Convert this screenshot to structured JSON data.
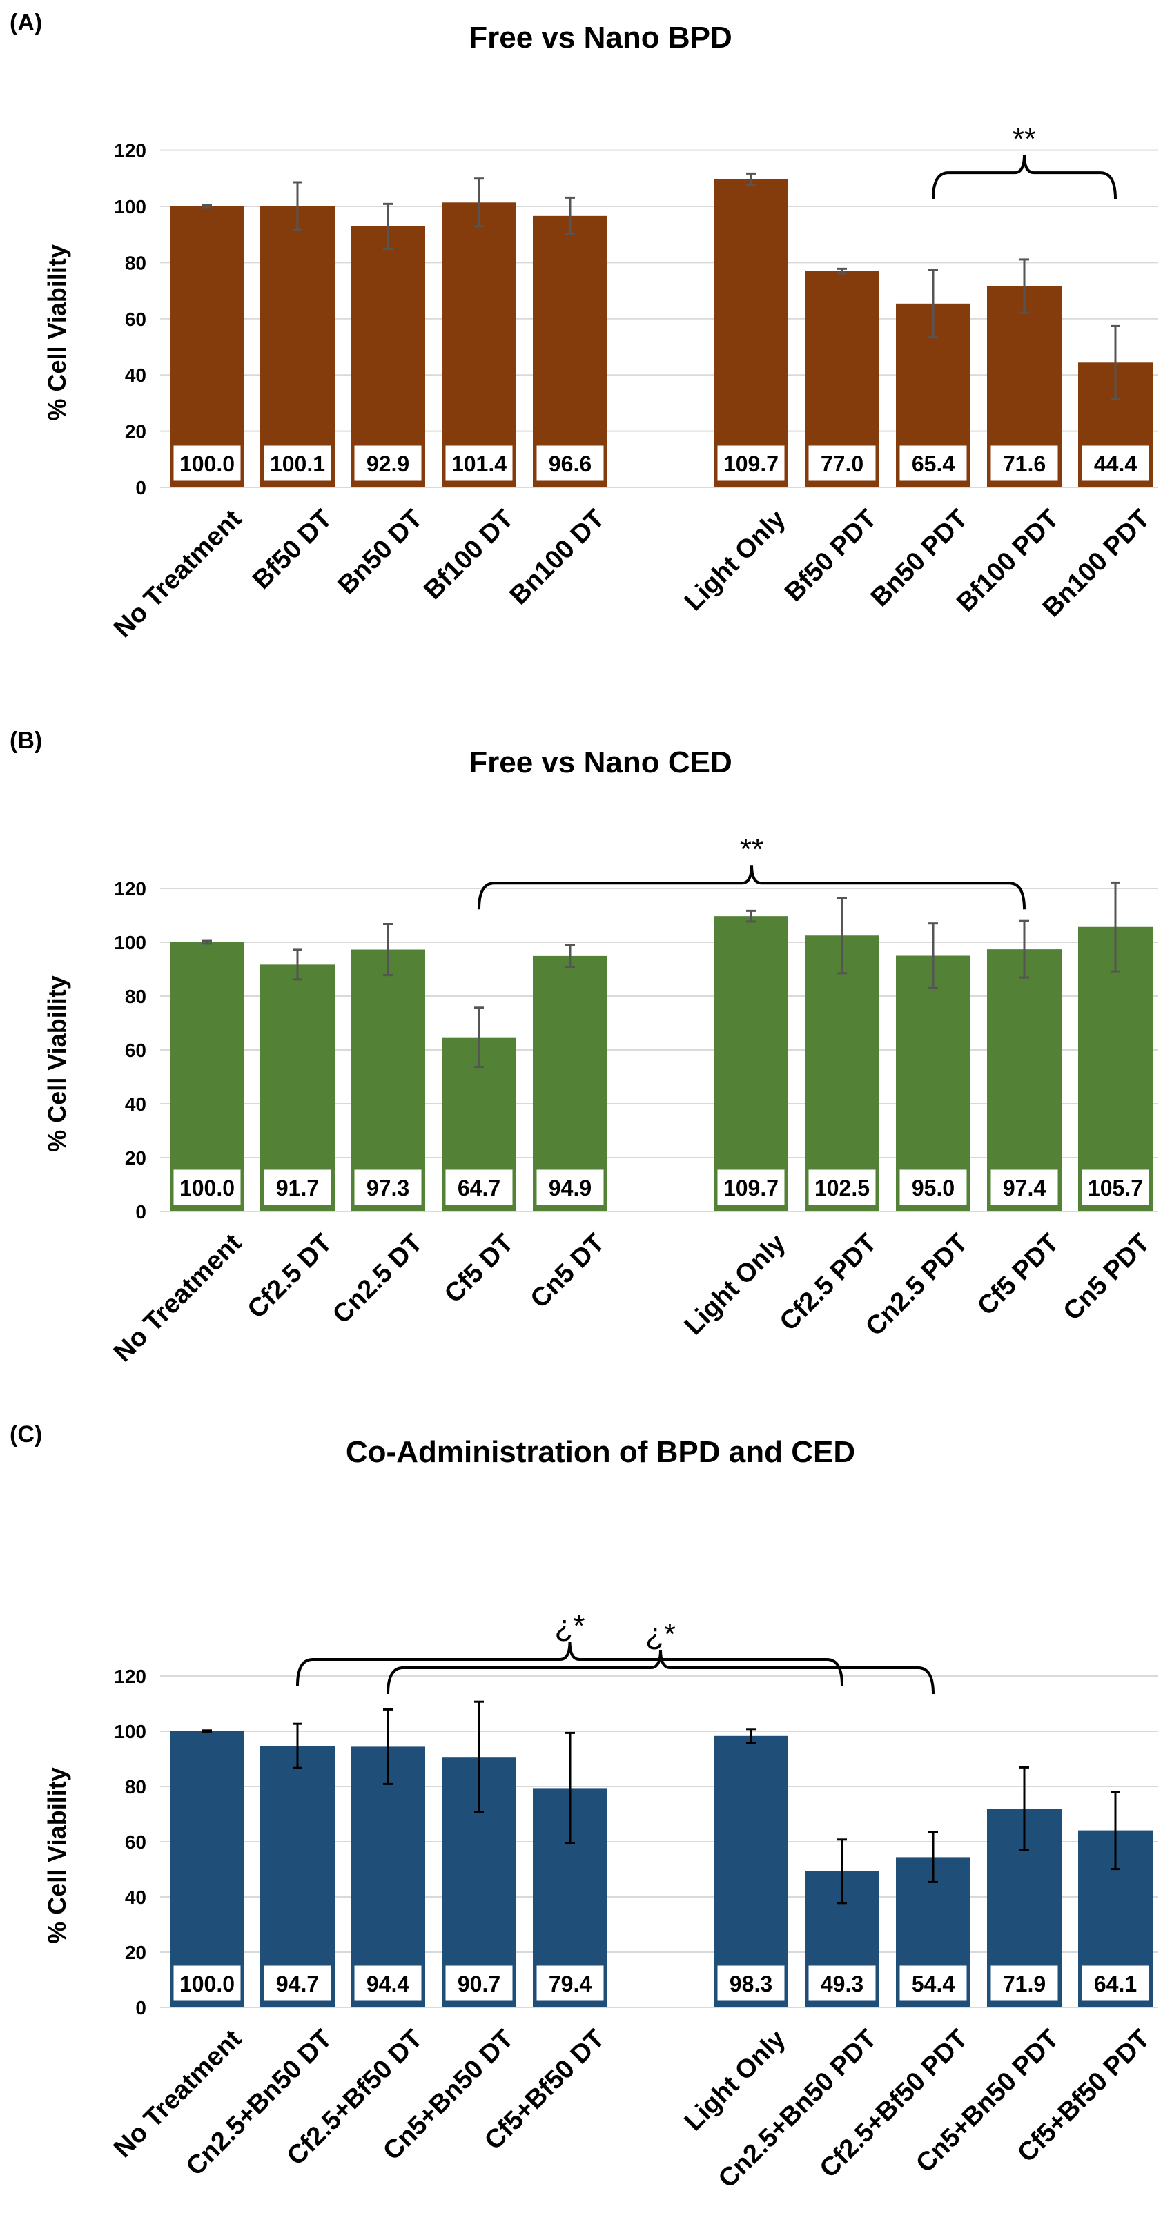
{
  "chart_data": [
    {
      "panel_label": "(A)",
      "type": "bar",
      "title": "Free vs Nano BPD",
      "ylabel": "% Cell Viability",
      "ylim": [
        0,
        120
      ],
      "yticks": [
        0,
        20,
        40,
        60,
        80,
        100,
        120
      ],
      "bar_color": "#843C0C",
      "categories": [
        "No Treatment",
        "Bf50 DT",
        "Bn50 DT",
        "Bf100 DT",
        "Bn100 DT",
        "Light Only",
        "Bf50 PDT",
        "Bn50 PDT",
        "Bf100 PDT",
        "Bn100 PDT"
      ],
      "values": [
        100.0,
        100.1,
        92.9,
        101.4,
        96.6,
        109.7,
        77.0,
        65.4,
        71.6,
        44.4
      ],
      "value_labels": [
        "100.0",
        "100.1",
        "92.9",
        "101.4",
        "96.6",
        "109.7",
        "77.0",
        "65.4",
        "71.6",
        "44.4"
      ],
      "errors": [
        0.5,
        8.5,
        8.0,
        8.5,
        6.5,
        2.0,
        0.8,
        12.0,
        9.5,
        13.0
      ],
      "significance": [
        {
          "from": "Bn50 PDT",
          "to": "Bn100 PDT",
          "label": "**",
          "level": 112
        }
      ]
    },
    {
      "panel_label": "(B)",
      "type": "bar",
      "title": "Free vs Nano CED",
      "ylabel": "% Cell Viability",
      "ylim": [
        0,
        120
      ],
      "yticks": [
        0,
        20,
        40,
        60,
        80,
        100,
        120
      ],
      "bar_color": "#538135",
      "categories": [
        "No Treatment",
        "Cf2.5 DT",
        "Cn2.5 DT",
        "Cf5 DT",
        "Cn5 DT",
        "Light Only",
        "Cf2.5 PDT",
        "Cn2.5 PDT",
        "Cf5 PDT",
        "Cn5 PDT"
      ],
      "values": [
        100.0,
        91.7,
        97.3,
        64.7,
        94.9,
        109.7,
        102.5,
        95.0,
        97.4,
        105.7
      ],
      "value_labels": [
        "100.0",
        "91.7",
        "97.3",
        "64.7",
        "94.9",
        "109.7",
        "102.5",
        "95.0",
        "97.4",
        "105.7"
      ],
      "errors": [
        0.5,
        5.5,
        9.5,
        11.0,
        4.0,
        2.0,
        14.0,
        12.0,
        10.5,
        16.5
      ],
      "significance": [
        {
          "from": "Cf5 DT",
          "to": "Cf5 PDT",
          "label": "**",
          "level": 122
        }
      ]
    },
    {
      "panel_label": "(C)",
      "type": "bar",
      "title": "Co-Administration of BPD and CED",
      "ylabel": "% Cell Viability",
      "ylim": [
        0,
        120
      ],
      "yticks": [
        0,
        20,
        40,
        60,
        80,
        100,
        120
      ],
      "bar_color": "#1F4E79",
      "categories": [
        "No Treatment",
        "Cn2.5+Bn50 DT",
        "Cf2.5+Bf50 DT",
        "Cn5+Bn50 DT",
        "Cf5+Bf50 DT",
        "Light Only",
        "Cn2.5+Bn50 PDT",
        "Cf2.5+Bf50 PDT",
        "Cn5+Bn50 PDT",
        "Cf5+Bf50 PDT"
      ],
      "values": [
        100.0,
        94.7,
        94.4,
        90.7,
        79.4,
        98.3,
        49.3,
        54.4,
        71.9,
        64.1
      ],
      "value_labels": [
        "100.0",
        "94.7",
        "94.4",
        "90.7",
        "79.4",
        "98.3",
        "49.3",
        "54.4",
        "71.9",
        "64.1"
      ],
      "errors": [
        0.3,
        8.0,
        13.5,
        20.0,
        20.0,
        2.5,
        11.5,
        9.0,
        15.0,
        14.0
      ],
      "significance": [
        {
          "from": "Cn2.5+Bn50 DT",
          "to": "Cn2.5+Bn50 PDT",
          "label": "¿*",
          "level": 126
        },
        {
          "from": "Cf2.5+Bf50 DT",
          "to": "Cf2.5+Bf50 PDT",
          "label": "¿*",
          "level": 123
        }
      ]
    }
  ]
}
